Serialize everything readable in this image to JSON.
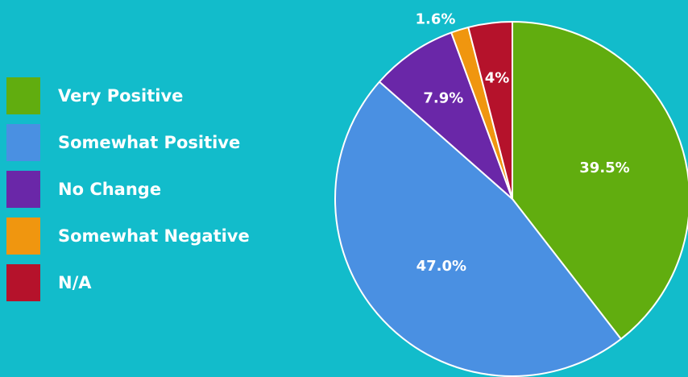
{
  "chart_data": {
    "type": "pie",
    "start_angle_deg": 0,
    "direction": "clockwise",
    "legend_position": "left",
    "slices": [
      {
        "name": "Very Positive",
        "value": 39.5,
        "label": "39.5%",
        "color": "#61ad0f",
        "label_position": "inside"
      },
      {
        "name": "Somewhat Positive",
        "value": 47.0,
        "label": "47.0%",
        "color": "#4a90e2",
        "label_position": "inside"
      },
      {
        "name": "No Change",
        "value": 7.9,
        "label": "7.9%",
        "color": "#6a27a8",
        "label_position": "inside"
      },
      {
        "name": "Somewhat Negative",
        "value": 1.6,
        "label": "1.6%",
        "color": "#f0960f",
        "label_position": "outside"
      },
      {
        "name": "N/A",
        "value": 4,
        "label": "4%",
        "color": "#b5122b",
        "label_position": "inside"
      }
    ]
  }
}
